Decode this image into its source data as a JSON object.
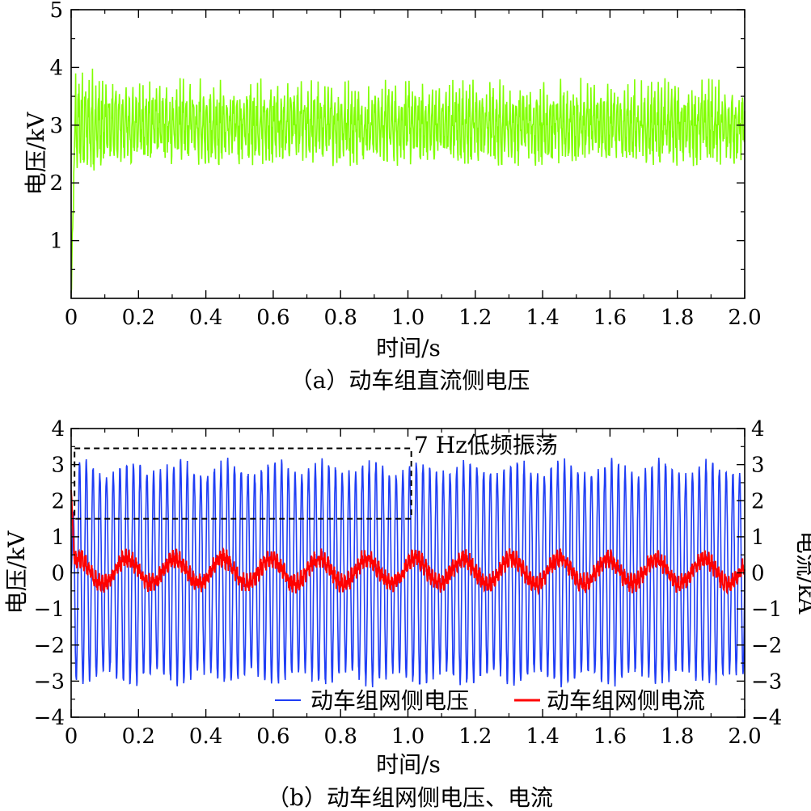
{
  "chart_data": [
    {
      "type": "line",
      "caption": "（a）动车组直流侧电压",
      "xlabel": "时间/s",
      "ylabel": "电压/kV",
      "xlim": [
        0,
        2.0
      ],
      "ylim": [
        0,
        5
      ],
      "x_ticks": [
        0,
        0.2,
        0.4,
        0.6,
        0.8,
        1.0,
        1.2,
        1.4,
        1.6,
        1.8,
        2.0
      ],
      "x_tick_labels": [
        "0",
        "0.2",
        "0.4",
        "0.6",
        "0.8",
        "1.0",
        "1.2",
        "1.4",
        "1.6",
        "1.8",
        "2.0"
      ],
      "y_ticks": [
        1,
        2,
        3,
        4,
        5
      ],
      "y_tick_labels": [
        "1",
        "2",
        "3",
        "4",
        "5"
      ],
      "series": [
        {
          "color": "#80ff00",
          "description_values": {
            "mean": 3.0,
            "ripple_min": 2.1,
            "ripple_max": 4.15,
            "startup_from": 0
          }
        }
      ]
    },
    {
      "type": "line",
      "caption": "（b）动车组网侧电压、电流",
      "xlabel": "时间/s",
      "ylabel_left": "电压/kV",
      "ylabel_right": "电流/kA",
      "xlim": [
        0,
        2.0
      ],
      "ylim_left": [
        -4,
        4
      ],
      "ylim_right": [
        -4,
        4
      ],
      "x_ticks": [
        0,
        0.2,
        0.4,
        0.6,
        0.8,
        1.0,
        1.2,
        1.4,
        1.6,
        1.8,
        2.0
      ],
      "x_tick_labels": [
        "0",
        "0.2",
        "0.4",
        "0.6",
        "0.8",
        "1.0",
        "1.2",
        "1.4",
        "1.6",
        "1.8",
        "2.0"
      ],
      "y_ticks": [
        -4,
        -3,
        -2,
        -1,
        0,
        1,
        2,
        3,
        4
      ],
      "y_tick_labels_left": [
        "−4",
        "−3",
        "−2",
        "−1",
        "0",
        "1",
        "2",
        "3",
        "4"
      ],
      "y_tick_labels_right": [
        "−4",
        "−3",
        "−2",
        "−1",
        "0",
        "1",
        "2",
        "3",
        "4"
      ],
      "legend_position": "bottom-right",
      "series": [
        {
          "name": "动车组网侧电压",
          "color": "#1f3df5",
          "frequency_hz": 50,
          "amplitude_kv": 2.9
        },
        {
          "name": "动车组网侧电流",
          "color": "#ff0000",
          "low_freq_hz": 7,
          "amplitude_ka": 0.35
        }
      ],
      "annotation": {
        "text": "7 Hz低频振荡",
        "box_x": [
          0.01,
          1.01
        ],
        "box_y": [
          1.5,
          3.45
        ]
      }
    }
  ]
}
